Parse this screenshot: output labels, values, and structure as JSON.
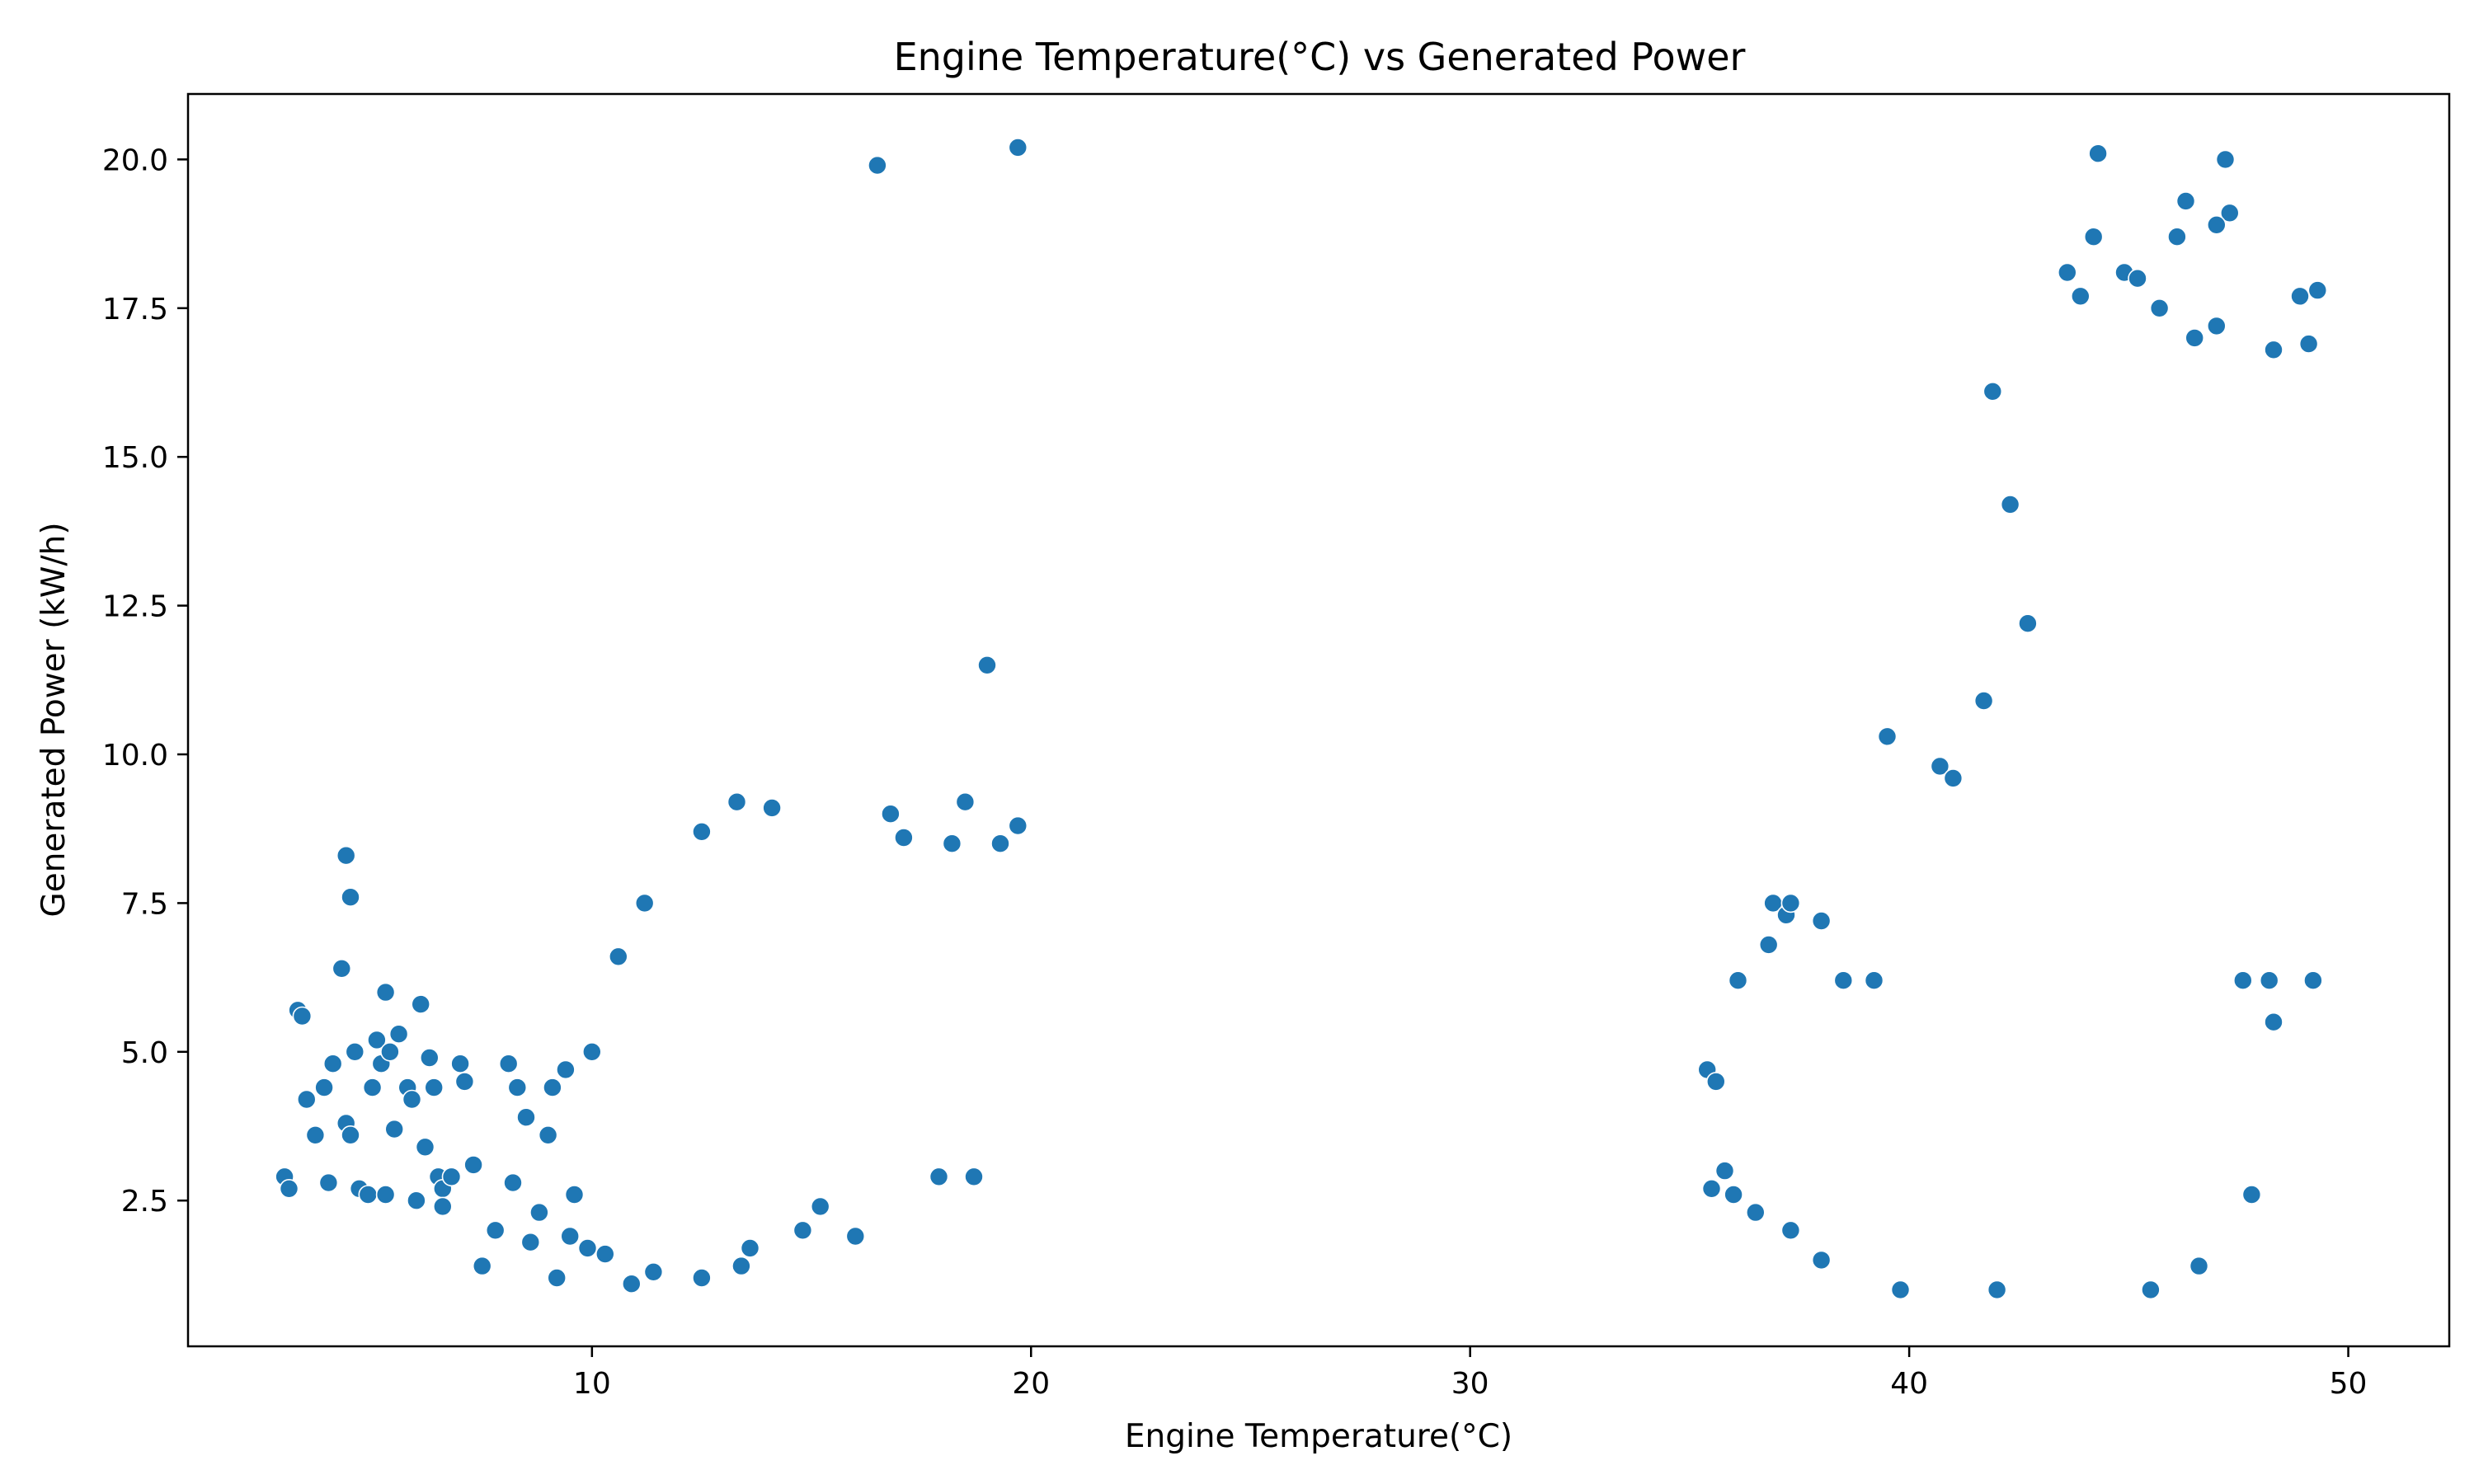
{
  "chart_data": {
    "type": "scatter",
    "title": "Engine Temperature(°C) vs Generated Power",
    "xlabel": "Engine Temperature(°C)",
    "ylabel": "Generated Power (kW/h)",
    "xlim": [
      0.8,
      52.3
    ],
    "ylim": [
      0.05,
      21.1
    ],
    "xticks": [
      10,
      20,
      30,
      40,
      50
    ],
    "xtick_labels": [
      "10",
      "20",
      "30",
      "40",
      "50"
    ],
    "yticks": [
      2.5,
      5.0,
      7.5,
      10.0,
      12.5,
      15.0,
      17.5,
      20.0
    ],
    "ytick_labels": [
      "2.5",
      "5.0",
      "7.5",
      "10.0",
      "12.5",
      "15.0",
      "17.5",
      "20.0"
    ],
    "grid": false,
    "marker_color": "#1f77b4",
    "series": [
      {
        "points": [
          [
            3.0,
            2.9
          ],
          [
            3.1,
            2.7
          ],
          [
            3.3,
            5.7
          ],
          [
            3.4,
            5.6
          ],
          [
            3.5,
            4.2
          ],
          [
            3.7,
            3.6
          ],
          [
            3.9,
            4.4
          ],
          [
            4.0,
            2.8
          ],
          [
            4.1,
            4.8
          ],
          [
            4.3,
            6.4
          ],
          [
            4.4,
            8.3
          ],
          [
            4.5,
            7.6
          ],
          [
            4.4,
            3.8
          ],
          [
            4.5,
            3.6
          ],
          [
            4.6,
            5.0
          ],
          [
            4.7,
            2.7
          ],
          [
            4.9,
            2.6
          ],
          [
            5.0,
            4.4
          ],
          [
            5.1,
            5.2
          ],
          [
            5.2,
            4.8
          ],
          [
            5.3,
            2.6
          ],
          [
            5.3,
            6.0
          ],
          [
            5.4,
            5.0
          ],
          [
            5.5,
            3.7
          ],
          [
            5.6,
            5.3
          ],
          [
            5.8,
            4.4
          ],
          [
            5.9,
            4.2
          ],
          [
            6.0,
            2.5
          ],
          [
            6.1,
            5.8
          ],
          [
            6.2,
            3.4
          ],
          [
            6.3,
            4.9
          ],
          [
            6.4,
            4.4
          ],
          [
            6.5,
            2.9
          ],
          [
            6.6,
            2.7
          ],
          [
            6.6,
            2.4
          ],
          [
            6.8,
            2.9
          ],
          [
            7.0,
            4.8
          ],
          [
            7.1,
            4.5
          ],
          [
            7.3,
            3.1
          ],
          [
            7.5,
            1.4
          ],
          [
            7.8,
            2.0
          ],
          [
            8.1,
            4.8
          ],
          [
            8.2,
            2.8
          ],
          [
            8.3,
            4.4
          ],
          [
            8.5,
            3.9
          ],
          [
            8.6,
            1.8
          ],
          [
            8.8,
            2.3
          ],
          [
            9.0,
            3.6
          ],
          [
            9.1,
            4.4
          ],
          [
            9.2,
            1.2
          ],
          [
            9.4,
            4.7
          ],
          [
            9.5,
            1.9
          ],
          [
            9.6,
            2.6
          ],
          [
            9.9,
            1.7
          ],
          [
            10.0,
            5.0
          ],
          [
            10.3,
            1.6
          ],
          [
            10.6,
            6.6
          ],
          [
            10.9,
            1.1
          ],
          [
            11.4,
            1.3
          ],
          [
            12.5,
            1.2
          ],
          [
            13.4,
            1.4
          ],
          [
            13.6,
            1.7
          ],
          [
            14.8,
            2.0
          ],
          [
            15.2,
            2.4
          ],
          [
            16.0,
            1.9
          ],
          [
            16.5,
            19.9
          ],
          [
            19.7,
            20.2
          ],
          [
            19.0,
            11.5
          ],
          [
            18.5,
            9.2
          ],
          [
            19.7,
            8.8
          ],
          [
            13.3,
            9.2
          ],
          [
            14.1,
            9.1
          ],
          [
            16.8,
            9.0
          ],
          [
            12.5,
            8.7
          ],
          [
            17.1,
            8.6
          ],
          [
            18.2,
            8.5
          ],
          [
            19.3,
            8.5
          ],
          [
            11.2,
            7.5
          ],
          [
            18.7,
            2.9
          ],
          [
            17.9,
            2.9
          ],
          [
            36.9,
            7.5
          ],
          [
            37.2,
            7.3
          ],
          [
            38.0,
            7.2
          ],
          [
            37.3,
            7.5
          ],
          [
            36.8,
            6.8
          ],
          [
            39.5,
            10.3
          ],
          [
            41.9,
            16.1
          ],
          [
            41.7,
            10.9
          ],
          [
            42.3,
            14.2
          ],
          [
            42.7,
            12.2
          ],
          [
            43.6,
            18.1
          ],
          [
            44.3,
            20.1
          ],
          [
            44.2,
            18.7
          ],
          [
            43.9,
            17.7
          ],
          [
            44.9,
            18.1
          ],
          [
            45.2,
            18.0
          ],
          [
            46.1,
            18.7
          ],
          [
            46.3,
            19.3
          ],
          [
            47.2,
            20.0
          ],
          [
            47.3,
            19.1
          ],
          [
            47.0,
            18.9
          ],
          [
            45.7,
            17.5
          ],
          [
            46.5,
            17.0
          ],
          [
            47.0,
            17.2
          ],
          [
            48.9,
            17.7
          ],
          [
            49.3,
            17.8
          ],
          [
            49.1,
            16.9
          ],
          [
            48.3,
            16.8
          ],
          [
            40.7,
            9.8
          ],
          [
            41.0,
            9.6
          ],
          [
            48.3,
            5.5
          ],
          [
            47.8,
            2.6
          ],
          [
            46.6,
            1.4
          ],
          [
            45.5,
            1.0
          ],
          [
            42.0,
            1.0
          ],
          [
            39.8,
            1.0
          ],
          [
            38.0,
            1.5
          ],
          [
            37.3,
            2.0
          ],
          [
            36.0,
            2.6
          ],
          [
            35.5,
            2.7
          ],
          [
            35.4,
            4.7
          ],
          [
            35.6,
            4.5
          ],
          [
            35.8,
            3.0
          ],
          [
            36.5,
            2.3
          ],
          [
            36.1,
            6.2
          ],
          [
            38.5,
            6.2
          ],
          [
            39.2,
            6.2
          ],
          [
            49.2,
            6.2
          ],
          [
            48.2,
            6.2
          ],
          [
            47.6,
            6.2
          ]
        ]
      }
    ]
  }
}
